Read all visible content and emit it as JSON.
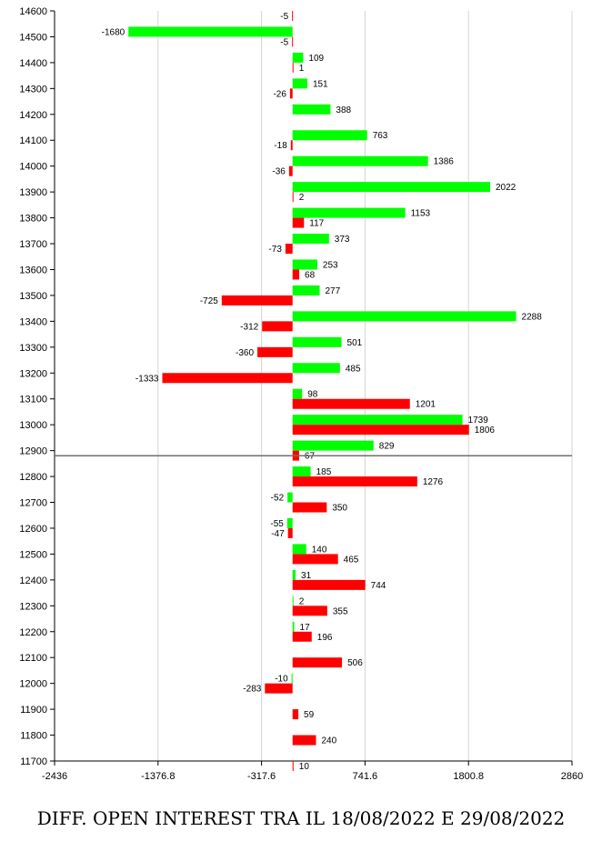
{
  "caption": "DIFF. OPEN INTEREST TRA IL 18/08/2022 E 29/08/2022",
  "chart_data": {
    "type": "bar",
    "orientation": "horizontal",
    "title": "DIFF. OPEN INTEREST TRA IL 18/08/2022 E 29/08/2022",
    "xlim": [
      -2436,
      2860
    ],
    "x_ticks": [
      "-2436",
      "-1376.8",
      "-317.6",
      "741.6",
      "1800.8",
      "2860"
    ],
    "x_tick_values": [
      -2436,
      -1376.8,
      -317.6,
      741.6,
      1800.8,
      2860
    ],
    "ylim": [
      11700,
      14600
    ],
    "categories": [
      "14600",
      "14500",
      "14400",
      "14300",
      "14200",
      "14100",
      "14000",
      "13900",
      "13800",
      "13700",
      "13600",
      "13500",
      "13400",
      "13300",
      "13200",
      "13100",
      "13000",
      "12900",
      "12800",
      "12700",
      "12600",
      "12500",
      "12400",
      "12300",
      "12200",
      "12100",
      "12000",
      "11900",
      "11800",
      "11700"
    ],
    "series": [
      {
        "color": "#00ff00",
        "values": [
          null,
          -1680,
          109,
          151,
          388,
          763,
          1386,
          2022,
          1153,
          373,
          253,
          277,
          2288,
          501,
          485,
          98,
          1739,
          829,
          185,
          -52,
          -55,
          140,
          31,
          2,
          17,
          null,
          -10,
          null,
          null,
          null
        ]
      },
      {
        "color": "#ff0000",
        "values": [
          -5,
          -5,
          1,
          -26,
          null,
          -18,
          -36,
          2,
          117,
          -73,
          68,
          -725,
          -312,
          -360,
          -1333,
          1201,
          1806,
          67,
          1276,
          350,
          -47,
          465,
          744,
          355,
          196,
          506,
          -283,
          59,
          240,
          10
        ]
      }
    ],
    "reference_line_y": 12880,
    "grid": "vertical",
    "legend": "none"
  }
}
